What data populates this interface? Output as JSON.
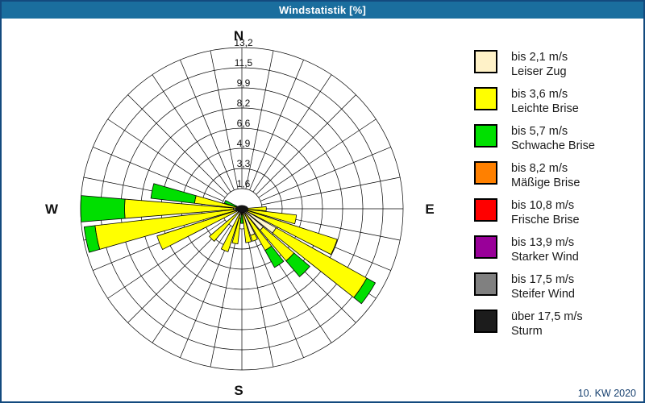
{
  "window_title": "Windstatistik [%]",
  "footer_date": "10. KW 2020",
  "legend": {
    "items": [
      {
        "speed": "bis 2,1 m/s",
        "name": "Leiser Zug",
        "color": "#FFF2C8",
        "pattern": "none"
      },
      {
        "speed": "bis 3,6 m/s",
        "name": "Leichte Brise",
        "color": "#FFFF00",
        "pattern": "none"
      },
      {
        "speed": "bis 5,7 m/s",
        "name": "Schwache Brise",
        "color": "#00E000",
        "pattern": "none"
      },
      {
        "speed": "bis 8,2 m/s",
        "name": "Mäßige Brise",
        "color": "#FF8000",
        "pattern": "none"
      },
      {
        "speed": "bis 10,8 m/s",
        "name": "Frische Brise",
        "color": "#FF0000",
        "pattern": "none"
      },
      {
        "speed": "bis 13,9 m/s",
        "name": "Starker Wind",
        "color": "#990099",
        "pattern": "dots"
      },
      {
        "speed": "bis 17,5 m/s",
        "name": "Steifer Wind",
        "color": "#808080",
        "pattern": "dots"
      },
      {
        "speed": "über 17,5 m/s",
        "name": "Sturm",
        "color": "#1C1C1C",
        "pattern": "dots"
      }
    ]
  },
  "chart_data": {
    "type": "windrose-stacked-bar",
    "unit": "%",
    "sectors": 32,
    "sector_width_deg": 11.25,
    "rings": [
      1.65,
      3.3,
      4.95,
      6.6,
      8.25,
      9.9,
      11.55,
      13.2
    ],
    "ring_labels": [
      "1,6",
      "3,3",
      "4,9",
      "6,6",
      "8,2",
      "9,9",
      "11,5",
      "13,2"
    ],
    "rmax": 13.2,
    "compass": {
      "n": "N",
      "e": "E",
      "s": "S",
      "w": "W"
    },
    "series_order": [
      "calm",
      "light",
      "weak"
    ],
    "series_colors": {
      "calm": "#FFF6D0",
      "light": "#FFFF00",
      "weak": "#00DF00"
    },
    "series_names": {
      "calm": "bis 2,1 m/s",
      "light": "bis 3,6 m/s",
      "weak": "bis 5,7 m/s"
    },
    "bars": [
      {
        "dir": 90,
        "calm": 0.3,
        "light": 2.0,
        "weak": 2.0
      },
      {
        "dir": 101.25,
        "calm": 0.4,
        "light": 4.5,
        "weak": 4.5
      },
      {
        "dir": 112.5,
        "calm": 0.5,
        "light": 8.2,
        "weak": 8.2
      },
      {
        "dir": 123.75,
        "calm": 3.2,
        "light": 11.7,
        "weak": 12.5
      },
      {
        "dir": 135,
        "calm": 2.3,
        "light": 5.6,
        "weak": 7.3
      },
      {
        "dir": 146.25,
        "calm": 0.5,
        "light": 3.9,
        "weak": 5.5
      },
      {
        "dir": 157.5,
        "calm": 2.3,
        "light": 2.8,
        "weak": 2.8
      },
      {
        "dir": 168.75,
        "calm": 0.4,
        "light": 2.8,
        "weak": 2.8
      },
      {
        "dir": 180,
        "calm": 0.2,
        "light": 0.5,
        "weak": 1.2
      },
      {
        "dir": 191.25,
        "calm": 0.8,
        "light": 2.9,
        "weak": 2.9
      },
      {
        "dir": 202.5,
        "calm": 0.5,
        "light": 3.7,
        "weak": 3.7
      },
      {
        "dir": 225,
        "calm": 0.4,
        "light": 3.5,
        "weak": 3.5
      },
      {
        "dir": 247.5,
        "calm": 0.5,
        "light": 7.3,
        "weak": 7.3
      },
      {
        "dir": 258.75,
        "calm": 0.6,
        "light": 12.1,
        "weak": 13.0
      },
      {
        "dir": 270,
        "calm": 0.7,
        "light": 9.6,
        "weak": 13.2
      },
      {
        "dir": 281.25,
        "calm": 0.4,
        "light": 3.9,
        "weak": 7.5
      },
      {
        "dir": 292.5,
        "calm": 0.3,
        "light": 0.5,
        "weak": 1.5
      }
    ]
  }
}
